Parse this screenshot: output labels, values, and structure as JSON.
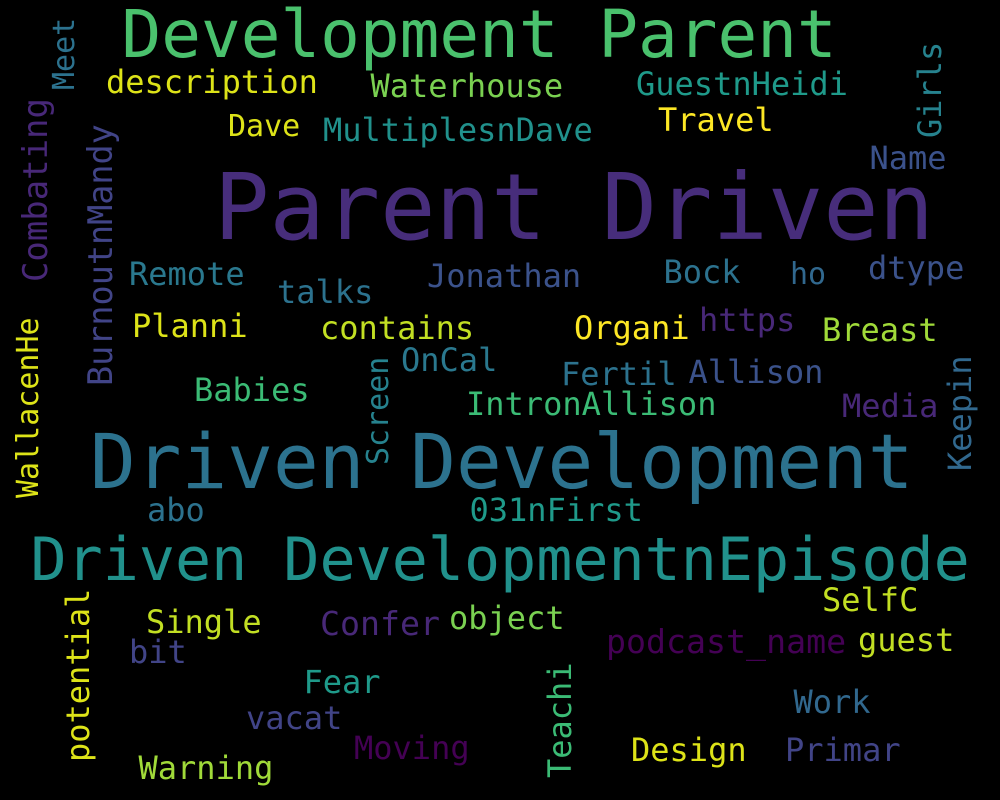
{
  "background": "#000000",
  "words": [
    {
      "text": "Parent Driven",
      "color": "#472d7b"
    },
    {
      "text": "Driven Development",
      "color": "#2c728e"
    },
    {
      "text": "Development Parent",
      "color": "#4ac16d"
    },
    {
      "text": "Driven DevelopmentnEpisode",
      "color": "#21918c"
    },
    {
      "text": "description",
      "color": "#dde318"
    },
    {
      "text": "Waterhouse",
      "color": "#7ad151"
    },
    {
      "text": "GuestnHeidi",
      "color": "#1f9a8a"
    },
    {
      "text": "Dave",
      "color": "#dde318"
    },
    {
      "text": "MultiplesnDave",
      "color": "#21918c"
    },
    {
      "text": "Travel",
      "color": "#fde725"
    },
    {
      "text": "Name",
      "color": "#3b528b"
    },
    {
      "text": "Remote",
      "color": "#2a788e"
    },
    {
      "text": "talks",
      "color": "#2c728e"
    },
    {
      "text": "Jonathan",
      "color": "#3b528b"
    },
    {
      "text": "Bock",
      "color": "#2c728e"
    },
    {
      "text": "ho",
      "color": "#31688e"
    },
    {
      "text": "dtype",
      "color": "#3b528b"
    },
    {
      "text": "Planni",
      "color": "#dde318"
    },
    {
      "text": "contains",
      "color": "#c2df23"
    },
    {
      "text": "Organi",
      "color": "#fde725"
    },
    {
      "text": "https",
      "color": "#482878"
    },
    {
      "text": "Breast",
      "color": "#a0da39"
    },
    {
      "text": "OnCal",
      "color": "#2a788e"
    },
    {
      "text": "Fertil",
      "color": "#2c728e"
    },
    {
      "text": "Allison",
      "color": "#3b528b"
    },
    {
      "text": "Babies",
      "color": "#3bbb75"
    },
    {
      "text": "IntronAllison",
      "color": "#3bbb75"
    },
    {
      "text": "Media",
      "color": "#482878"
    },
    {
      "text": "abo",
      "color": "#2c728e"
    },
    {
      "text": "031nFirst",
      "color": "#1f9a8a"
    },
    {
      "text": "SelfC",
      "color": "#c2df23"
    },
    {
      "text": "Single",
      "color": "#c2df23"
    },
    {
      "text": "Confer",
      "color": "#482878"
    },
    {
      "text": "object",
      "color": "#7ad151"
    },
    {
      "text": "podcast_name",
      "color": "#440154"
    },
    {
      "text": "guest",
      "color": "#c2df23"
    },
    {
      "text": "bit",
      "color": "#414487"
    },
    {
      "text": "Fear",
      "color": "#1f9a8a"
    },
    {
      "text": "vacat",
      "color": "#414487"
    },
    {
      "text": "Work",
      "color": "#31688e"
    },
    {
      "text": "Moving",
      "color": "#440154"
    },
    {
      "text": "Design",
      "color": "#dde318"
    },
    {
      "text": "Primar",
      "color": "#414487"
    },
    {
      "text": "Warning",
      "color": "#a0da39"
    },
    {
      "text": "Meet",
      "color": "#2c728e"
    },
    {
      "text": "Combating",
      "color": "#482878"
    },
    {
      "text": "BurnoutnMandy",
      "color": "#414487"
    },
    {
      "text": "WallacenHe",
      "color": "#dde318"
    },
    {
      "text": "Screen",
      "color": "#26828e"
    },
    {
      "text": "potential",
      "color": "#dde318"
    },
    {
      "text": "Teachi",
      "color": "#3bbb75"
    },
    {
      "text": "Girls",
      "color": "#26828e"
    },
    {
      "text": "Keepin",
      "color": "#31688e"
    }
  ]
}
